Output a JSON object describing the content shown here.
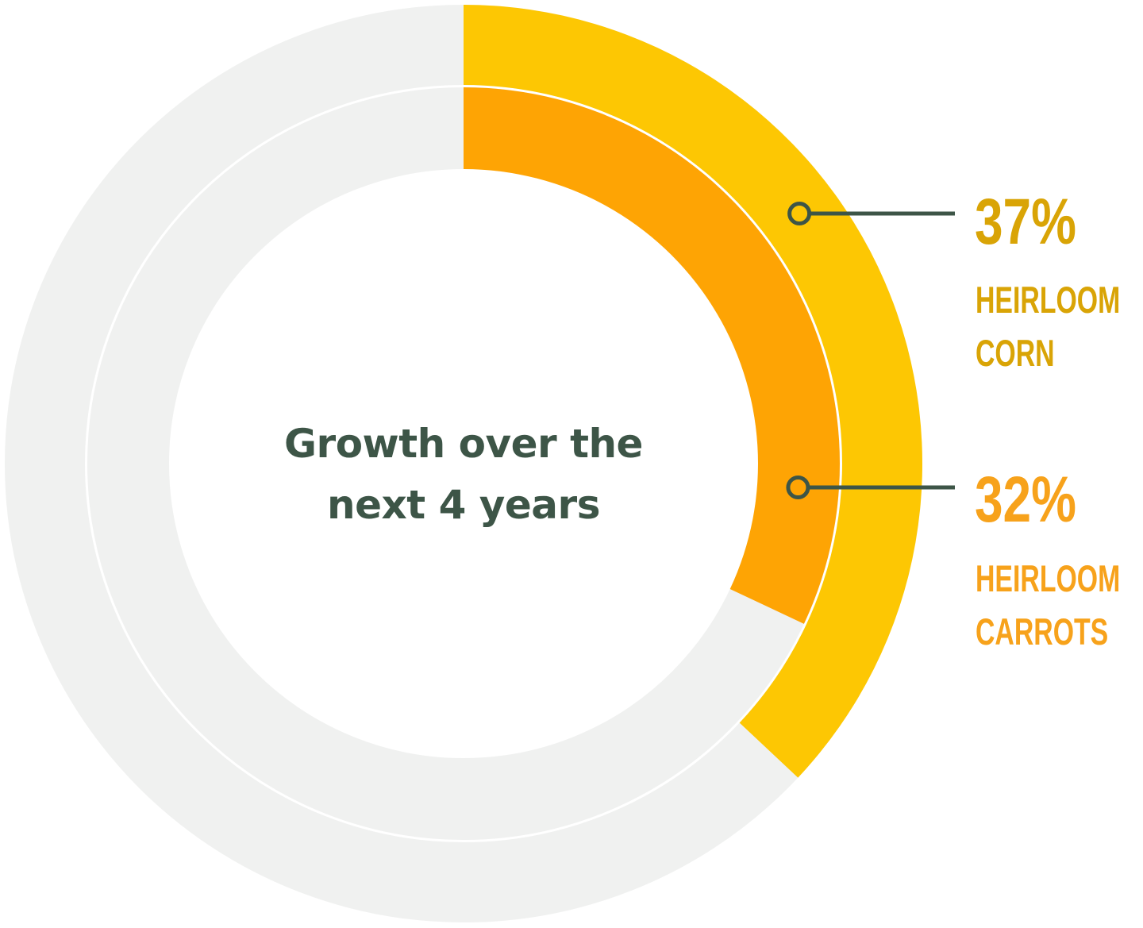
{
  "chart_data": {
    "type": "pie",
    "subtype": "nested-donut",
    "title_lines": [
      "Growth over the",
      "next 4 years"
    ],
    "series": [
      {
        "ring": "outer",
        "value": 37,
        "value_label": "37%",
        "label_lines": [
          "HEIRLOOM",
          "CORN"
        ],
        "color": "#FDC703",
        "label_color": "#D9A406"
      },
      {
        "ring": "inner",
        "value": 32,
        "value_label": "32%",
        "label_lines": [
          "HEIRLOOM",
          "CARROTS"
        ],
        "color": "#FEA404",
        "label_color": "#F7A21B"
      }
    ],
    "max": 100,
    "colors": {
      "track": "#F0F1F0",
      "leader": "#3D5547",
      "title": "#3D5547"
    }
  }
}
